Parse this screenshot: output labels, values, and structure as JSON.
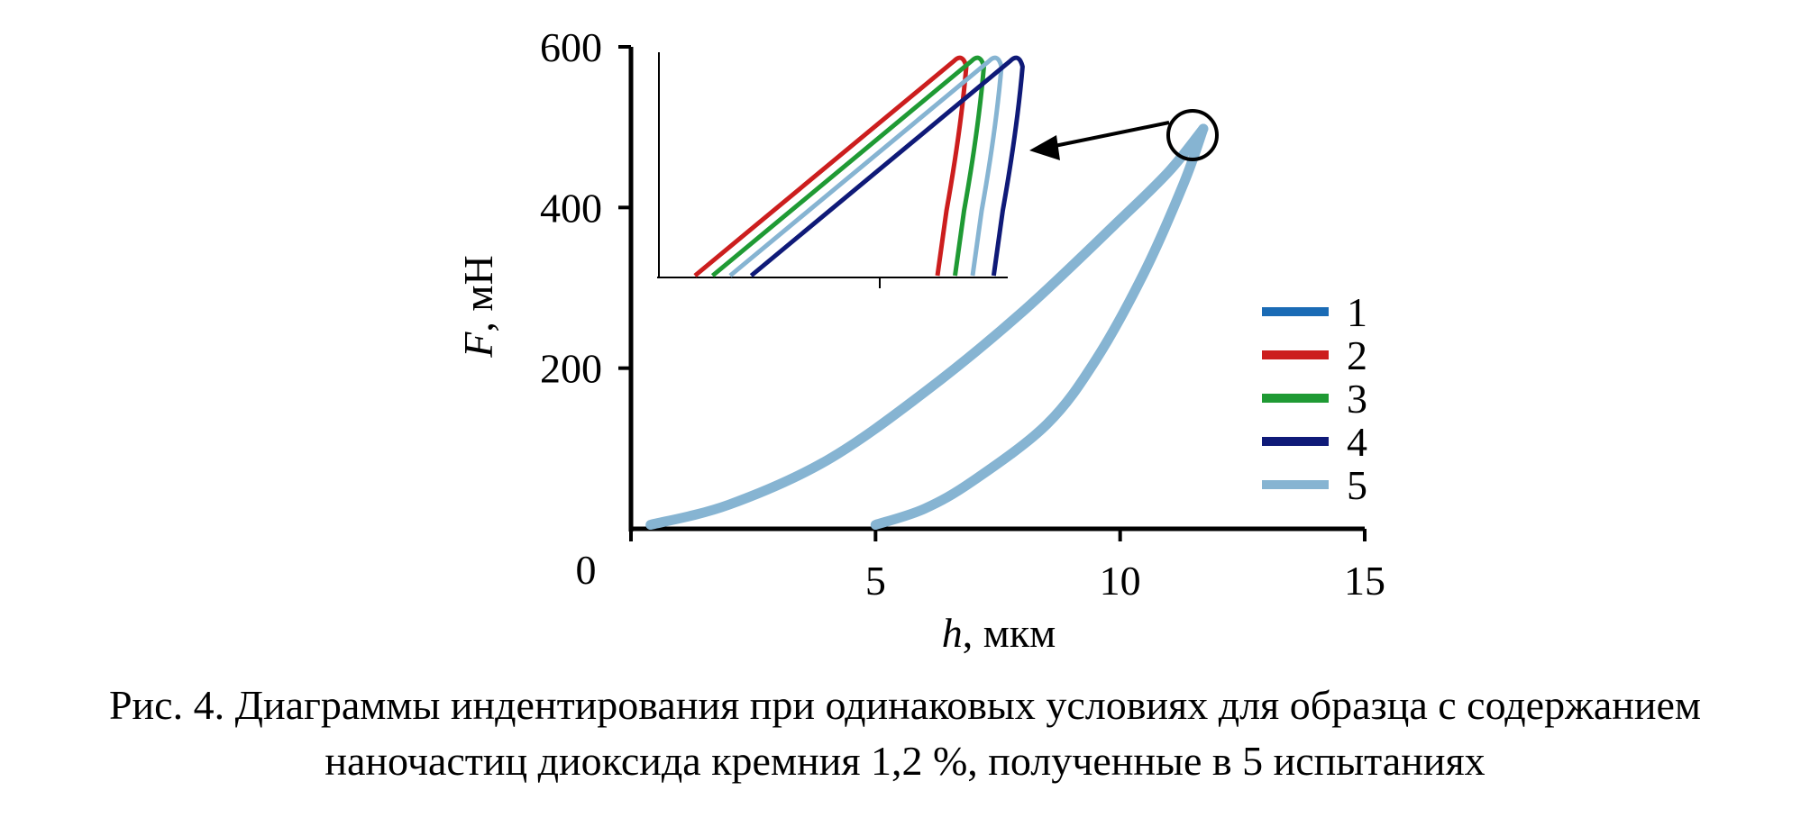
{
  "chart_data": {
    "type": "line",
    "xlabel": "h",
    "xlabel_unit": ", мкм",
    "ylabel": "F",
    "ylabel_unit": ", мН",
    "xlim": [
      0,
      15
    ],
    "ylim": [
      0,
      600
    ],
    "x_ticks": [
      0,
      5,
      10,
      15
    ],
    "x_tick_labels": [
      "0",
      "5",
      "10",
      "15"
    ],
    "y_ticks": [
      200,
      400,
      600
    ],
    "y_tick_labels": [
      "200",
      "400",
      "600"
    ],
    "grid": false,
    "legend_position": "right",
    "series": [
      {
        "name": "1",
        "color": "#1a6bb5"
      },
      {
        "name": "2",
        "color": "#cc1e1e"
      },
      {
        "name": "3",
        "color": "#1f9a34"
      },
      {
        "name": "4",
        "color": "#0f1a78"
      },
      {
        "name": "5",
        "color": "#86b4d2",
        "loading": [
          [
            0.4,
            5
          ],
          [
            2,
            30
          ],
          [
            4,
            85
          ],
          [
            6,
            170
          ],
          [
            8,
            270
          ],
          [
            10,
            385
          ],
          [
            11,
            445
          ],
          [
            11.7,
            498
          ]
        ],
        "unloading": [
          [
            11.7,
            498
          ],
          [
            11.3,
            430
          ],
          [
            10.5,
            320
          ],
          [
            9.5,
            210
          ],
          [
            8.5,
            130
          ],
          [
            7,
            60
          ],
          [
            6,
            25
          ],
          [
            5,
            5
          ]
        ]
      }
    ],
    "inset": {
      "description_free": true,
      "series": [
        {
          "name": "2",
          "color": "#cc1e1e",
          "offset": 0.0
        },
        {
          "name": "3",
          "color": "#1f9a34",
          "offset": 0.05
        },
        {
          "name": "5",
          "color": "#86b4d2",
          "offset": 0.1
        },
        {
          "name": "4",
          "color": "#0f1a78",
          "offset": 0.16
        }
      ]
    },
    "callout_arrow": true
  },
  "caption": {
    "line1": "Рис. 4. Диаграммы индентирования при одинаковых условиях для образца с содержанием",
    "line2": "наночастиц диоксида кремния 1,2 %, полученные в 5 испытаниях"
  }
}
